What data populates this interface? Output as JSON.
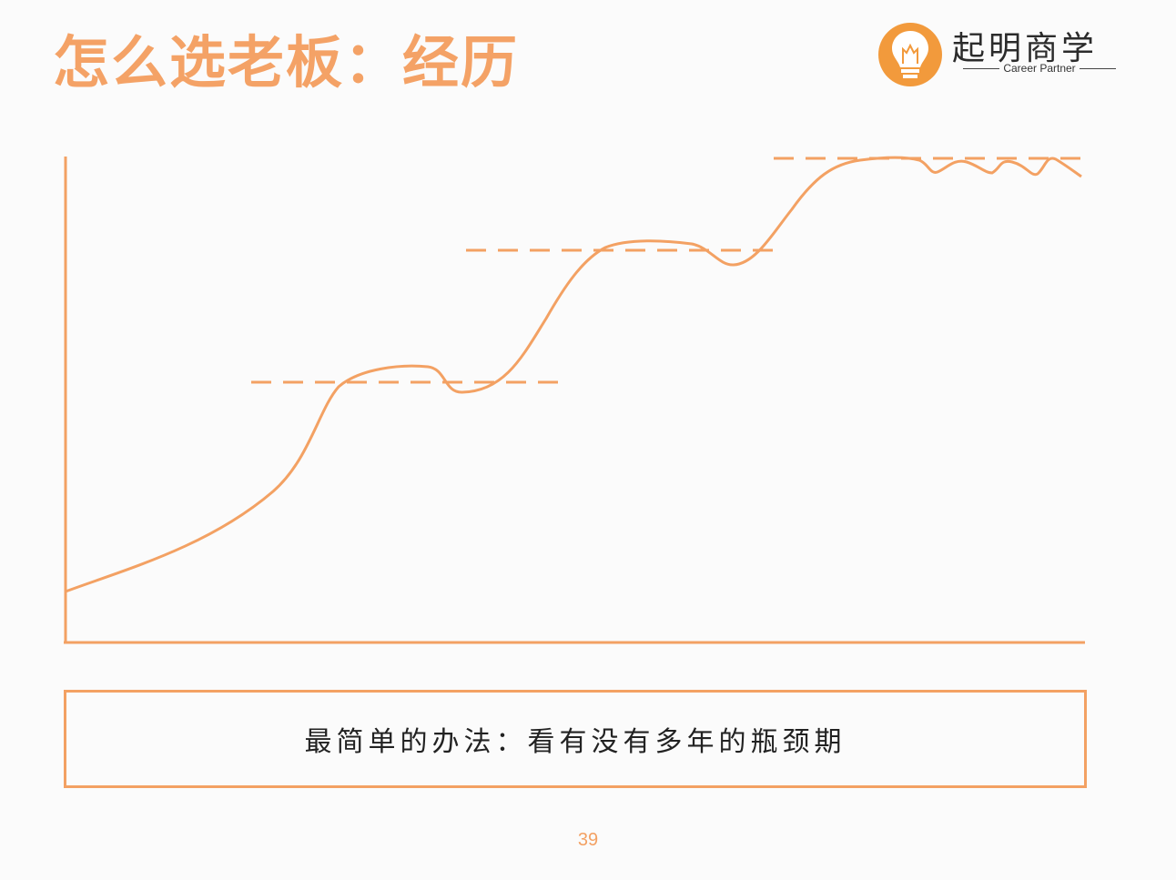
{
  "slide": {
    "title": "怎么选老板：经历",
    "note": "最简单的办法：看有没有多年的瓶颈期",
    "page_number": "39"
  },
  "logo": {
    "name": "起明商学",
    "tagline": "Career Partner",
    "icon": "lightbulb-icon"
  },
  "colors": {
    "accent": "#f3a163",
    "title": "#f4a266",
    "text": "#222222",
    "background": "#fbfbfb"
  }
}
